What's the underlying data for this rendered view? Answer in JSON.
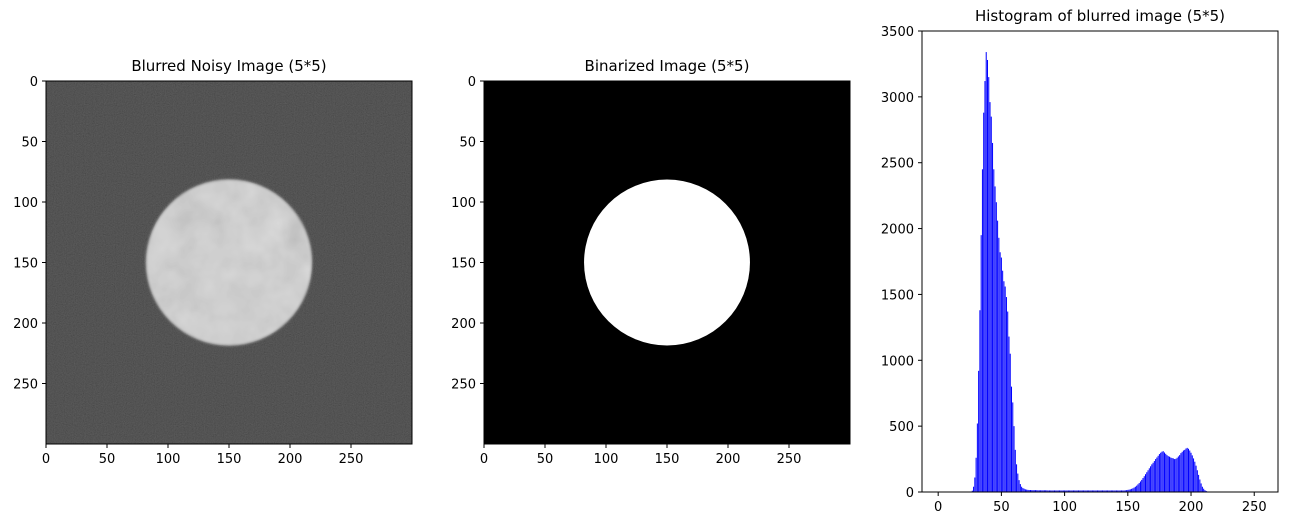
{
  "colors": {
    "figure_bg": "#ffffff",
    "hist_bar": "#0000ff",
    "axis": "#000000",
    "binary_fg": "#ffffff",
    "binary_bg": "#000000"
  },
  "chart_data": [
    {
      "type": "image",
      "title": "Blurred Noisy Image (5*5)",
      "image_size": [
        300,
        300
      ],
      "content": "grayscale noisy dark background with bright textured disk",
      "disk": {
        "center_x": 150,
        "center_y": 150,
        "radius": 68
      },
      "background_gray": 45,
      "disk_gray": 200,
      "xlim": [
        0,
        300
      ],
      "ylim": [
        300,
        0
      ],
      "xticks": [
        0,
        50,
        100,
        150,
        200,
        250
      ],
      "yticks": [
        0,
        50,
        100,
        150,
        200,
        250
      ]
    },
    {
      "type": "image",
      "title": "Binarized Image (5*5)",
      "image_size": [
        300,
        300
      ],
      "content": "binary black background with white disk",
      "disk": {
        "center_x": 150,
        "center_y": 150,
        "radius": 68
      },
      "xlim": [
        0,
        300
      ],
      "ylim": [
        300,
        0
      ],
      "xticks": [
        0,
        50,
        100,
        150,
        200,
        250
      ],
      "yticks": [
        0,
        50,
        100,
        150,
        200,
        250
      ]
    },
    {
      "type": "bar",
      "title": "Histogram of blurred image (5*5)",
      "xlim": [
        -12.8,
        268.8
      ],
      "ylim": [
        0,
        3500
      ],
      "xticks": [
        0,
        50,
        100,
        150,
        200,
        250
      ],
      "yticks": [
        0,
        500,
        1000,
        1500,
        2000,
        2500,
        3000,
        3500
      ],
      "x_start": 0,
      "values": [
        0,
        0,
        0,
        0,
        0,
        0,
        0,
        0,
        0,
        0,
        0,
        0,
        0,
        0,
        0,
        0,
        0,
        0,
        0,
        0,
        0,
        0,
        0,
        0,
        0,
        0,
        2,
        10,
        40,
        110,
        260,
        520,
        920,
        1380,
        1950,
        2450,
        2880,
        3120,
        3340,
        3280,
        3150,
        2960,
        2850,
        2650,
        2450,
        2320,
        2200,
        2060,
        1930,
        1820,
        1780,
        1680,
        1600,
        1560,
        1480,
        1370,
        1180,
        1050,
        800,
        680,
        500,
        320,
        210,
        140,
        90,
        60,
        40,
        30,
        25,
        20,
        18,
        16,
        15,
        15,
        14,
        14,
        14,
        14,
        14,
        13,
        13,
        13,
        13,
        13,
        13,
        13,
        13,
        12,
        12,
        12,
        12,
        12,
        12,
        12,
        12,
        12,
        12,
        12,
        12,
        12,
        12,
        12,
        12,
        12,
        12,
        12,
        12,
        12,
        12,
        12,
        12,
        12,
        12,
        12,
        12,
        12,
        12,
        12,
        12,
        12,
        12,
        12,
        12,
        12,
        12,
        12,
        12,
        12,
        12,
        12,
        12,
        12,
        12,
        12,
        12,
        12,
        12,
        12,
        12,
        12,
        12,
        12,
        12,
        12,
        12,
        12,
        12,
        12,
        13,
        14,
        16,
        18,
        20,
        24,
        28,
        34,
        40,
        48,
        58,
        68,
        80,
        92,
        106,
        120,
        135,
        150,
        165,
        180,
        195,
        210,
        222,
        235,
        250,
        262,
        275,
        288,
        298,
        306,
        310,
        300,
        290,
        280,
        272,
        268,
        262,
        258,
        255,
        250,
        252,
        260,
        270,
        280,
        295,
        305,
        315,
        320,
        330,
        335,
        328,
        315,
        298,
        278,
        255,
        230,
        200,
        165,
        130,
        95,
        65,
        40,
        25,
        14,
        8,
        4,
        2,
        1,
        0,
        0,
        0,
        0,
        0,
        0,
        0,
        0,
        0,
        0,
        0,
        0,
        0,
        0,
        0,
        0,
        0,
        0,
        0,
        0,
        0,
        0
      ]
    }
  ]
}
